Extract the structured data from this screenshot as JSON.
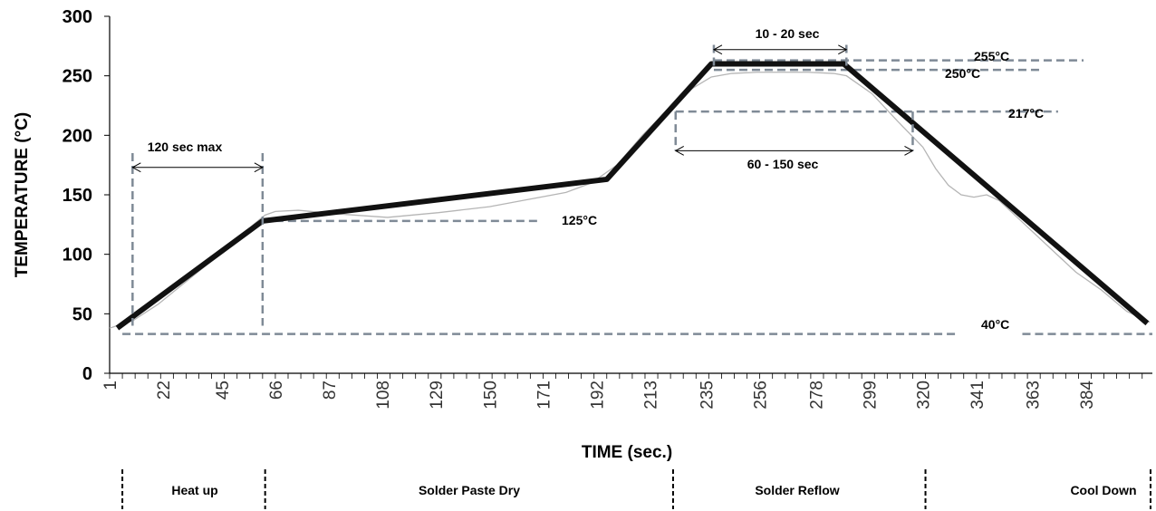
{
  "chart_data": {
    "type": "line",
    "xlabel": "TIME (sec.)",
    "ylabel": "TEMPERATURE (°C)",
    "xlim": [
      1,
      410
    ],
    "ylim": [
      0,
      300
    ],
    "x_tick_labels": [
      "1",
      "22",
      "45",
      "66",
      "87",
      "108",
      "129",
      "150",
      "171",
      "192",
      "213",
      "235",
      "256",
      "278",
      "299",
      "320",
      "341",
      "363",
      "384"
    ],
    "y_tick_labels": [
      "0",
      "50",
      "100",
      "150",
      "200",
      "250",
      "300"
    ],
    "grid": false,
    "series": [
      {
        "role": "profile",
        "x": [
          4,
          61,
          196,
          237,
          289,
          408
        ],
        "y": [
          38,
          128,
          163,
          260,
          260,
          42
        ]
      },
      {
        "role": "measured",
        "x": [
          1,
          10,
          20,
          35,
          50,
          58,
          62,
          66,
          75,
          90,
          110,
          130,
          150,
          165,
          180,
          190,
          200,
          210,
          220,
          230,
          237,
          245,
          255,
          265,
          275,
          285,
          290,
          300,
          310,
          320,
          325,
          330,
          335,
          340,
          345,
          350,
          360,
          370,
          380,
          390,
          400,
          409
        ],
        "y": [
          38,
          44,
          58,
          84,
          110,
          126,
          133,
          136,
          137,
          134,
          131,
          135,
          140,
          146,
          152,
          160,
          175,
          200,
          222,
          240,
          249,
          252,
          253,
          253,
          253,
          252,
          250,
          235,
          212,
          190,
          172,
          158,
          150,
          148,
          150,
          145,
          125,
          105,
          85,
          70,
          52,
          43
        ]
      }
    ],
    "reference_lines": [
      {
        "label": "255°C",
        "y": 263,
        "x": [
          238,
          383
        ]
      },
      {
        "label": "250°C",
        "y": 255,
        "x": [
          238,
          367
        ]
      },
      {
        "label": "217°C",
        "y": 220,
        "x": [
          223,
          373
        ]
      },
      {
        "label": "125°C",
        "y": 128,
        "x": [
          61,
          170
        ]
      },
      {
        "label": "40°C",
        "y": 33,
        "x": [
          359,
          410
        ]
      },
      {
        "label": "",
        "y": 33,
        "x": [
          6,
          334
        ]
      }
    ],
    "time_windows": [
      {
        "label": "120 sec max",
        "x": [
          10,
          61
        ],
        "y_line": 173,
        "y_top": 185,
        "y_bottom": 40
      },
      {
        "label": "10 - 20 sec",
        "x": [
          238,
          290
        ],
        "y_line": 272,
        "y_top": 276,
        "y_bottom": 256
      },
      {
        "label": "60  - 150 sec",
        "x": [
          223,
          316
        ],
        "y_line": 187,
        "y_top": 220,
        "y_bottom": 187
      }
    ],
    "phases": [
      {
        "label": "Heat up",
        "x": [
          6,
          62
        ]
      },
      {
        "label": "Solder Paste Dry",
        "x": [
          62,
          222
        ]
      },
      {
        "label": "Solder Reflow",
        "x": [
          222,
          321
        ]
      },
      {
        "label": "Cool Down",
        "x": [
          321,
          410
        ]
      }
    ],
    "colors": {
      "profile": "#111111",
      "measured": "#b5b5b5",
      "reference": "#7f8a96"
    }
  }
}
